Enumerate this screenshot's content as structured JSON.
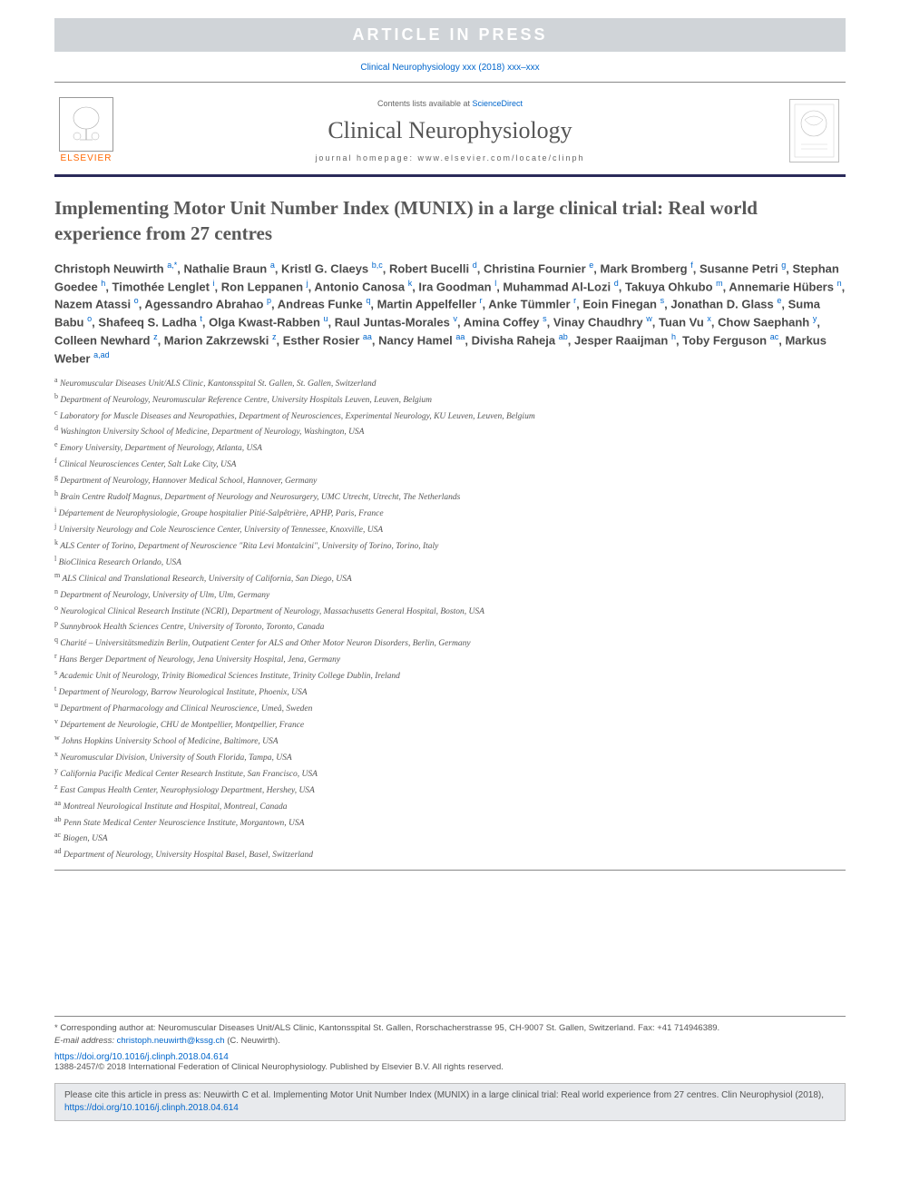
{
  "banner": "ARTICLE IN PRESS",
  "citation_top": "Clinical Neurophysiology xxx (2018) xxx–xxx",
  "header": {
    "elsevier_label": "ELSEVIER",
    "contents_prefix": "Contents lists available at ",
    "contents_link": "ScienceDirect",
    "journal_title": "Clinical Neurophysiology",
    "homepage_label": "journal homepage: www.elsevier.com/locate/clinph"
  },
  "article_title": "Implementing Motor Unit Number Index (MUNIX) in a large clinical trial: Real world experience from 27 centres",
  "authors_html": "Christoph Neuwirth <sup>a,*</sup>, Nathalie Braun <sup>a</sup>, Kristl G. Claeys <sup>b,c</sup>, Robert Bucelli <sup>d</sup>, Christina Fournier <sup>e</sup>, Mark Bromberg <sup>f</sup>, Susanne Petri <sup>g</sup>, Stephan Goedee <sup>h</sup>, Timothée Lenglet <sup>i</sup>, Ron Leppanen <sup>j</sup>, Antonio Canosa <sup>k</sup>, Ira Goodman <sup>l</sup>, Muhammad Al-Lozi <sup>d</sup>, Takuya Ohkubo <sup>m</sup>, Annemarie Hübers <sup>n</sup>, Nazem Atassi <sup>o</sup>, Agessandro Abrahao <sup>p</sup>, Andreas Funke <sup>q</sup>, Martin Appelfeller <sup>r</sup>, Anke Tümmler <sup>r</sup>, Eoin Finegan <sup>s</sup>, Jonathan D. Glass <sup>e</sup>, Suma Babu <sup>o</sup>, Shafeeq S. Ladha <sup>t</sup>, Olga Kwast-Rabben <sup>u</sup>, Raul Juntas-Morales <sup>v</sup>, Amina Coffey <sup>s</sup>, Vinay Chaudhry <sup>w</sup>, Tuan Vu <sup>x</sup>, Chow Saephanh <sup>y</sup>, Colleen Newhard <sup>z</sup>, Marion Zakrzewski <sup>z</sup>, Esther Rosier <sup>aa</sup>, Nancy Hamel <sup>aa</sup>, Divisha Raheja <sup>ab</sup>, Jesper Raaijman <sup>h</sup>, Toby Ferguson <sup>ac</sup>, Markus Weber <sup>a,ad</sup>",
  "affiliations": [
    {
      "k": "a",
      "t": "Neuromuscular Diseases Unit/ALS Clinic, Kantonsspital St. Gallen, St. Gallen, Switzerland"
    },
    {
      "k": "b",
      "t": "Department of Neurology, Neuromuscular Reference Centre, University Hospitals Leuven, Leuven, Belgium"
    },
    {
      "k": "c",
      "t": "Laboratory for Muscle Diseases and Neuropathies, Department of Neurosciences, Experimental Neurology, KU Leuven, Leuven, Belgium"
    },
    {
      "k": "d",
      "t": "Washington University School of Medicine, Department of Neurology, Washington, USA"
    },
    {
      "k": "e",
      "t": "Emory University, Department of Neurology, Atlanta, USA"
    },
    {
      "k": "f",
      "t": "Clinical Neurosciences Center, Salt Lake City, USA"
    },
    {
      "k": "g",
      "t": "Department of Neurology, Hannover Medical School, Hannover, Germany"
    },
    {
      "k": "h",
      "t": "Brain Centre Rudolf Magnus, Department of Neurology and Neurosurgery, UMC Utrecht, Utrecht, The Netherlands"
    },
    {
      "k": "i",
      "t": "Département de Neurophysiologie, Groupe hospitalier Pitié-Salpêtrière, APHP, Paris, France"
    },
    {
      "k": "j",
      "t": "University Neurology and Cole Neuroscience Center, University of Tennessee, Knoxville, USA"
    },
    {
      "k": "k",
      "t": "ALS Center of Torino, Department of Neuroscience \"Rita Levi Montalcini\", University of Torino, Torino, Italy"
    },
    {
      "k": "l",
      "t": "BioClinica Research Orlando, USA"
    },
    {
      "k": "m",
      "t": "ALS Clinical and Translational Research, University of California, San Diego, USA"
    },
    {
      "k": "n",
      "t": "Department of Neurology, University of Ulm, Ulm, Germany"
    },
    {
      "k": "o",
      "t": "Neurological Clinical Research Institute (NCRI), Department of Neurology, Massachusetts General Hospital, Boston, USA"
    },
    {
      "k": "p",
      "t": "Sunnybrook Health Sciences Centre, University of Toronto, Toronto, Canada"
    },
    {
      "k": "q",
      "t": "Charité – Universitätsmedizin Berlin, Outpatient Center for ALS and Other Motor Neuron Disorders, Berlin, Germany"
    },
    {
      "k": "r",
      "t": "Hans Berger Department of Neurology, Jena University Hospital, Jena, Germany"
    },
    {
      "k": "s",
      "t": "Academic Unit of Neurology, Trinity Biomedical Sciences Institute, Trinity College Dublin, Ireland"
    },
    {
      "k": "t",
      "t": "Department of Neurology, Barrow Neurological Institute, Phoenix, USA"
    },
    {
      "k": "u",
      "t": "Department of Pharmacology and Clinical Neuroscience, Umeå, Sweden"
    },
    {
      "k": "v",
      "t": "Département de Neurologie, CHU de Montpellier, Montpellier, France"
    },
    {
      "k": "w",
      "t": "Johns Hopkins University School of Medicine, Baltimore, USA"
    },
    {
      "k": "x",
      "t": "Neuromuscular Division, University of South Florida, Tampa, USA"
    },
    {
      "k": "y",
      "t": "California Pacific Medical Center Research Institute, San Francisco, USA"
    },
    {
      "k": "z",
      "t": "East Campus Health Center, Neurophysiology Department, Hershey, USA"
    },
    {
      "k": "aa",
      "t": "Montreal Neurological Institute and Hospital, Montreal, Canada"
    },
    {
      "k": "ab",
      "t": "Penn State Medical Center Neuroscience Institute, Morgantown, USA"
    },
    {
      "k": "ac",
      "t": "Biogen, USA"
    },
    {
      "k": "ad",
      "t": "Department of Neurology, University Hospital Basel, Basel, Switzerland"
    }
  ],
  "corresponding": {
    "label": "* Corresponding author at: Neuromuscular Diseases Unit/ALS Clinic, Kantonsspital St. Gallen, Rorschacherstrasse 95, CH-9007 St. Gallen, Switzerland. Fax: +41 714946389.",
    "email_label": "E-mail address: ",
    "email": "christoph.neuwirth@kssg.ch",
    "email_suffix": " (C. Neuwirth)."
  },
  "doi": "https://doi.org/10.1016/j.clinph.2018.04.614",
  "copyright": "1388-2457/© 2018 International Federation of Clinical Neurophysiology. Published by Elsevier B.V. All rights reserved.",
  "cite_box": {
    "text": "Please cite this article in press as: Neuwirth C et al. Implementing Motor Unit Number Index (MUNIX) in a large clinical trial: Real world experience from 27 centres. Clin Neurophysiol (2018), ",
    "link": "https://doi.org/10.1016/j.clinph.2018.04.614"
  },
  "colors": {
    "banner_bg": "#d0d4d8",
    "banner_text": "#ffffff",
    "link": "#0066cc",
    "elsevier_orange": "#ff6600",
    "rule": "#2a2a5a",
    "citebox_bg": "#e8eaed"
  }
}
